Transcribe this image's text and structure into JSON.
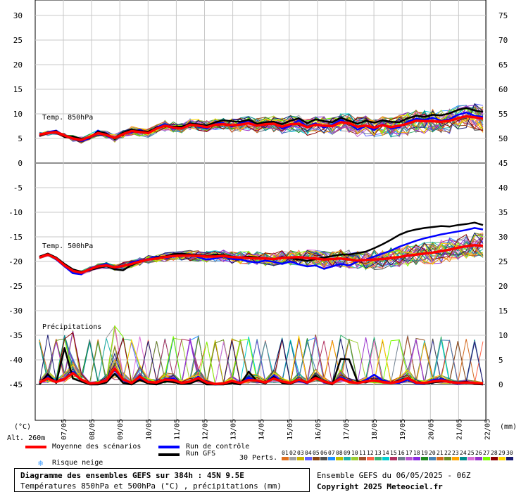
{
  "chart_data": {
    "type": "line",
    "title": "Diagramme des ensembles GEFS sur 384h : 45N 9.5E",
    "subtitle": "Températures 850hPa et 500hPa (°C) , précipitations (mm)",
    "run_info": "Ensemble GEFS du 06/05/2025 - 06Z",
    "copyright": "Copyright 2025 Meteociel.fr",
    "altitude": "Alt. 260m",
    "left_unit": "(°C)",
    "right_unit": "(mm)",
    "left_axis_ticks": [
      "30",
      "25",
      "20",
      "15",
      "10",
      "5",
      "0",
      "-5",
      "-10",
      "-15",
      "-20",
      "-25",
      "-30",
      "-35",
      "-40",
      "-45"
    ],
    "right_axis_ticks": [
      "75",
      "70",
      "65",
      "60",
      "55",
      "50",
      "45",
      "40",
      "35",
      "30",
      "25",
      "20",
      "15",
      "10",
      "5",
      "0"
    ],
    "x_tick_labels": [
      "07/05",
      "08/05",
      "09/05",
      "10/05",
      "11/05",
      "12/05",
      "13/05",
      "14/05",
      "15/05",
      "16/05",
      "17/05",
      "18/05",
      "19/05",
      "20/05",
      "21/05",
      "22/05"
    ],
    "panel_labels": {
      "t850": "Temp. 850hPa",
      "t500": "Temp. 500hPa",
      "precip": "Précipitations"
    },
    "legend": {
      "mean": "Moyenne des scénarios",
      "control": "Run de contrôle",
      "gfs": "Run GFS",
      "snow": "Risque neige",
      "perts": "30 Perts.",
      "mean_color": "#ff0000",
      "control_color": "#0000ff",
      "gfs_color": "#000000"
    },
    "perturbation_numbers": [
      "01",
      "02",
      "03",
      "04",
      "05",
      "06",
      "07",
      "08",
      "09",
      "10",
      "11",
      "12",
      "13",
      "14",
      "15",
      "16",
      "17",
      "18",
      "19",
      "20",
      "21",
      "22",
      "23",
      "24",
      "25",
      "26",
      "27",
      "28",
      "29",
      "30"
    ],
    "perturbation_colors": [
      "#e07020",
      "#a0a0a0",
      "#c8b400",
      "#6060ff",
      "#8b4513",
      "#505050",
      "#1e90ff",
      "#c0c000",
      "#20b2aa",
      "#9acd32",
      "#a0522d",
      "#ff6347",
      "#3cb371",
      "#00ced1",
      "#b03060",
      "#708090",
      "#ba55d3",
      "#8a2be2",
      "#228b22",
      "#4682b4",
      "#d2691e",
      "#6b8e23",
      "#ffa500",
      "#008b8b",
      "#da70d6",
      "#9932cc",
      "#7cfc00",
      "#8b0000",
      "#ffd700",
      "#191970"
    ],
    "series_850_mean": [
      5.8,
      6.1,
      6.3,
      5.6,
      5.0,
      4.7,
      5.3,
      6.1,
      5.7,
      5.1,
      5.9,
      6.5,
      6.3,
      6.1,
      7.0,
      7.6,
      7.2,
      7.0,
      7.8,
      7.6,
      7.3,
      7.8,
      7.9,
      7.7,
      7.8,
      8.1,
      7.6,
      7.9,
      8.0,
      7.4,
      7.9,
      8.0,
      7.3,
      7.8,
      7.6,
      7.5,
      8.3,
      8.1,
      7.4,
      7.6,
      7.2,
      7.7,
      7.3,
      7.6,
      8.0,
      8.6,
      8.5,
      8.5,
      8.4,
      8.6,
      9.1,
      9.5,
      9.3,
      9.0
    ],
    "series_850_control": [
      5.5,
      6.3,
      6.6,
      5.5,
      5.2,
      4.5,
      5.0,
      6.6,
      5.5,
      5.0,
      6.0,
      6.2,
      6.8,
      6.0,
      7.3,
      7.9,
      7.0,
      7.2,
      8.1,
      7.4,
      7.0,
      8.2,
      8.1,
      7.4,
      8.2,
      8.6,
      7.6,
      8.3,
      8.4,
      7.0,
      7.6,
      8.7,
      7.4,
      8.1,
      7.2,
      7.8,
      8.8,
      8.0,
      6.8,
      7.5,
      6.7,
      7.9,
      7.0,
      7.3,
      8.4,
      9.0,
      8.8,
      9.2,
      8.6,
      8.9,
      9.8,
      10.3,
      9.6,
      9.4
    ],
    "series_850_gfs": [
      5.6,
      6.0,
      6.5,
      5.3,
      5.4,
      4.9,
      5.1,
      6.4,
      6.0,
      4.9,
      6.2,
      6.8,
      6.5,
      6.4,
      7.2,
      7.5,
      7.4,
      7.4,
      8.0,
      7.9,
      7.6,
      8.3,
      8.7,
      8.5,
      8.4,
      8.8,
      8.0,
      8.3,
      8.4,
      7.9,
      8.6,
      9.1,
      8.1,
      8.9,
      8.5,
      8.3,
      9.2,
      8.6,
      8.0,
      8.6,
      8.2,
      8.7,
      8.4,
      8.3,
      9.1,
      9.6,
      9.4,
      9.8,
      9.7,
      10.1,
      10.8,
      11.2,
      10.7,
      10.4
    ],
    "series_500_mean": [
      -19.2,
      -18.6,
      -19.4,
      -20.8,
      -21.9,
      -22.3,
      -21.6,
      -21.0,
      -20.8,
      -21.2,
      -20.9,
      -20.5,
      -20.0,
      -19.6,
      -19.4,
      -19.1,
      -18.9,
      -18.8,
      -18.8,
      -18.9,
      -19.0,
      -19.0,
      -18.9,
      -19.1,
      -19.2,
      -19.3,
      -19.4,
      -19.4,
      -19.5,
      -19.3,
      -19.2,
      -19.1,
      -19.3,
      -19.4,
      -19.6,
      -19.5,
      -19.4,
      -19.6,
      -19.8,
      -19.7,
      -19.6,
      -19.5,
      -19.3,
      -19.1,
      -18.8,
      -18.6,
      -18.4,
      -18.2,
      -17.9,
      -17.6,
      -17.2,
      -16.9,
      -16.7,
      -16.8
    ],
    "series_500_control": [
      -19.1,
      -18.5,
      -19.6,
      -21.0,
      -22.4,
      -22.6,
      -21.4,
      -20.9,
      -20.5,
      -21.4,
      -21.0,
      -20.2,
      -19.8,
      -19.5,
      -19.0,
      -19.3,
      -19.0,
      -18.6,
      -18.5,
      -19.2,
      -19.6,
      -19.4,
      -19.0,
      -19.5,
      -19.6,
      -20.0,
      -20.2,
      -19.8,
      -20.1,
      -20.5,
      -20.0,
      -20.6,
      -21.0,
      -20.8,
      -21.5,
      -21.0,
      -20.5,
      -20.8,
      -20.0,
      -19.6,
      -19.0,
      -18.4,
      -17.8,
      -17.0,
      -16.4,
      -15.8,
      -15.3,
      -14.9,
      -14.5,
      -14.2,
      -13.9,
      -13.6,
      -13.2,
      -13.5
    ],
    "series_500_gfs": [
      -19.0,
      -18.4,
      -19.2,
      -20.5,
      -21.6,
      -22.1,
      -21.8,
      -21.3,
      -20.9,
      -21.6,
      -21.8,
      -20.7,
      -20.1,
      -19.7,
      -19.2,
      -19.0,
      -18.5,
      -18.4,
      -18.6,
      -18.7,
      -18.9,
      -18.6,
      -18.7,
      -19.0,
      -19.2,
      -19.0,
      -19.2,
      -19.3,
      -19.6,
      -19.1,
      -19.4,
      -19.6,
      -19.9,
      -19.5,
      -19.2,
      -18.9,
      -18.6,
      -18.6,
      -18.3,
      -18.0,
      -17.3,
      -16.5,
      -15.6,
      -14.6,
      -13.9,
      -13.5,
      -13.2,
      -13.0,
      -12.8,
      -12.9,
      -12.6,
      -12.4,
      -12.1,
      -12.6
    ],
    "series_precip_mean": [
      0.4,
      1.2,
      0.5,
      1.1,
      2.3,
      1.0,
      0.2,
      0.3,
      0.8,
      3.2,
      1.0,
      0.3,
      1.6,
      0.5,
      0.4,
      1.0,
      0.9,
      0.3,
      0.6,
      1.3,
      0.4,
      0.1,
      0.2,
      0.7,
      0.3,
      0.9,
      0.8,
      0.4,
      1.2,
      0.6,
      0.3,
      1.0,
      0.4,
      1.3,
      0.6,
      0.2,
      1.2,
      0.5,
      0.3,
      0.6,
      0.8,
      0.5,
      0.3,
      0.6,
      1.3,
      0.4,
      0.3,
      0.6,
      0.8,
      0.5,
      0.3,
      0.4,
      0.3,
      0.2
    ],
    "series_precip_control": [
      0.2,
      1.8,
      0.6,
      1.0,
      2.6,
      0.8,
      0.1,
      0.2,
      1.0,
      2.9,
      0.8,
      0.1,
      1.3,
      0.4,
      0.3,
      1.1,
      1.2,
      0.2,
      0.5,
      1.6,
      0.2,
      0.0,
      0.1,
      0.5,
      0.2,
      1.4,
      0.6,
      0.3,
      1.8,
      0.4,
      0.2,
      0.8,
      0.2,
      1.7,
      0.5,
      0.1,
      1.5,
      0.7,
      0.2,
      0.9,
      2.0,
      0.8,
      0.4,
      0.3,
      1.0,
      0.2,
      0.1,
      0.9,
      1.1,
      0.5,
      0.1,
      0.4,
      0.2,
      0.0
    ],
    "series_precip_gfs": [
      0.0,
      2.1,
      0.3,
      7.4,
      1.2,
      0.6,
      0.0,
      0.0,
      0.4,
      2.2,
      0.3,
      0.0,
      0.9,
      0.2,
      0.0,
      0.6,
      0.5,
      0.1,
      0.2,
      0.9,
      0.0,
      0.0,
      0.0,
      0.3,
      0.0,
      2.6,
      0.7,
      0.2,
      1.5,
      0.3,
      0.1,
      0.9,
      0.3,
      1.8,
      0.5,
      0.0,
      5.2,
      5.1,
      0.6,
      0.4,
      0.9,
      0.6,
      0.3,
      0.8,
      1.4,
      0.3,
      0.2,
      0.4,
      0.6,
      0.5,
      0.2,
      0.6,
      0.1,
      0.0
    ]
  }
}
